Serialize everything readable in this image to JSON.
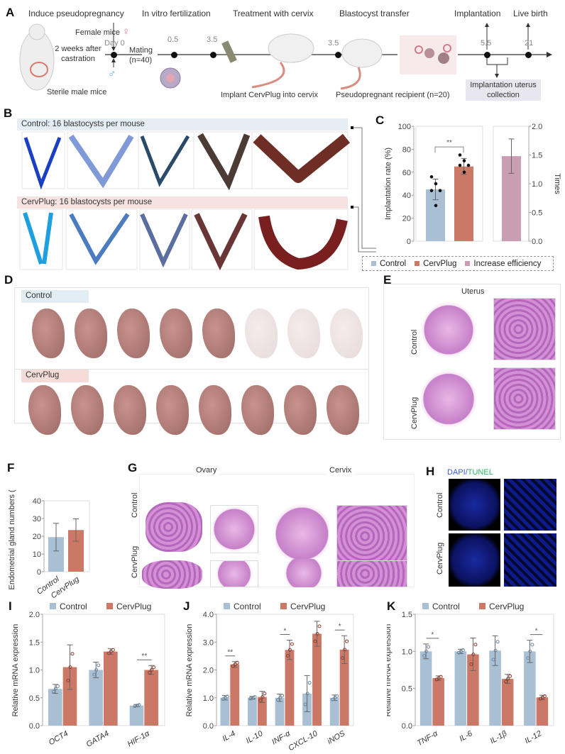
{
  "panels": {
    "A": "A",
    "B": "B",
    "C": "C",
    "D": "D",
    "E": "E",
    "F": "F",
    "G": "G",
    "H": "H",
    "I": "I",
    "J": "J",
    "K": "K"
  },
  "timeline": {
    "stages": [
      "Induce pseudopregnancy",
      "In vitro fertilization",
      "Treatment with cervix",
      "Blastocyst transfer",
      "Implantation",
      "Live birth"
    ],
    "female": "Female mice",
    "female_symbol": "♀",
    "male_symbol": "♂",
    "castration": "2 weeks after castration",
    "sterile_male": "Sterile male mice",
    "mating": "Mating (n=40)",
    "days": [
      "Day 0",
      "0.5",
      "3.5",
      "3.5",
      "5.5",
      "21"
    ],
    "implant": "Implant CervPlug into cervix",
    "recipient": "Pseudopregnant recipient (n=20)",
    "collection": "Implantation uterus collection"
  },
  "panel_b": {
    "control": "Control: 16 blastocysts per mouse",
    "cervplug": "CervPlug: 16 blastocysts per mouse"
  },
  "panel_d": {
    "control": "Control",
    "cervplug": "CervPlug",
    "control_pups": 5,
    "cervplug_pups": 8
  },
  "panel_e": {
    "title": "Uterus",
    "rows": [
      "Control",
      "CervPlug"
    ]
  },
  "panel_g": {
    "ovary": "Ovary",
    "cervix": "Cervix",
    "rows": [
      "Control",
      "CervPlug"
    ]
  },
  "panel_h": {
    "dapi": "DAPI",
    "slash": "/",
    "tunel": "TUNEL",
    "rows": [
      "Control",
      "CervPlug"
    ]
  },
  "colors": {
    "control": "#a9bfd4",
    "cervplug": "#cc7867",
    "increase": "#c99db2",
    "dapi": "#3b5bd9",
    "tunel": "#2fb36a"
  },
  "legend": {
    "control": "Control",
    "cervplug": "CervPlug",
    "increase": "Increase efficiency"
  },
  "chart_data": [
    {
      "id": "C",
      "type": "bar",
      "ylabel": "Implantation rate (%)",
      "ylim": [
        0,
        100
      ],
      "yticks": [
        "0",
        "20",
        "40",
        "60",
        "80",
        "100"
      ],
      "categories": [
        "Control",
        "CervPlug"
      ],
      "values": [
        45,
        65
      ],
      "errors": [
        9,
        7
      ],
      "points": [
        [
          56,
          50,
          44,
          44,
          31
        ],
        [
          75,
          70,
          66,
          66,
          60
        ]
      ],
      "significance": "**",
      "secondary": {
        "ylabel": "Times",
        "ylim": [
          0,
          2.0
        ],
        "yticks": [
          "0.0",
          "0.5",
          "1.0",
          "1.5",
          "2.0"
        ],
        "category": "Increase efficiency",
        "value": 1.48,
        "error": 0.3
      }
    },
    {
      "id": "F",
      "type": "bar",
      "ylabel": "Endometrial gland numbers (n)",
      "ylim": [
        0,
        40
      ],
      "yticks": [
        "0",
        "10",
        "20",
        "30",
        "40"
      ],
      "categories": [
        "Control",
        "CervPlug"
      ],
      "values": [
        19.5,
        23.5
      ],
      "errors": [
        7.8,
        6.3
      ]
    },
    {
      "id": "I",
      "type": "bar",
      "ylabel": "Relative mRNA expression",
      "ylim": [
        0,
        2.0
      ],
      "yticks": [
        "0.0",
        "0.5",
        "1.0",
        "1.5",
        "2.0"
      ],
      "categories": [
        "OCT4",
        "GATA4",
        "HIF-1α"
      ],
      "series": [
        {
          "name": "Control",
          "values": [
            0.66,
            1.0,
            0.36
          ],
          "errors": [
            0.08,
            0.14,
            0.02
          ]
        },
        {
          "name": "CervPlug",
          "values": [
            1.05,
            1.33,
            1.0
          ],
          "errors": [
            0.4,
            0.05,
            0.08
          ]
        }
      ],
      "significance": [
        "",
        "",
        "**"
      ]
    },
    {
      "id": "J",
      "type": "bar",
      "ylabel": "Relative mRNA expression",
      "ylim": [
        0,
        4.0
      ],
      "yticks": [
        "0.0",
        "1.0",
        "2.0",
        "3.0",
        "4.0"
      ],
      "categories": [
        "IL-4",
        "IL-10",
        "INF-α",
        "CXCL-10",
        "iNOS"
      ],
      "series": [
        {
          "name": "Control",
          "values": [
            1.0,
            1.0,
            1.0,
            1.15,
            1.0
          ],
          "errors": [
            0.08,
            0.05,
            0.13,
            0.65,
            0.1
          ]
        },
        {
          "name": "CervPlug",
          "values": [
            2.2,
            1.03,
            2.72,
            3.3,
            2.73
          ],
          "errors": [
            0.1,
            0.2,
            0.35,
            0.45,
            0.5
          ]
        }
      ],
      "significance": [
        "**",
        "",
        "*",
        "",
        "*"
      ]
    },
    {
      "id": "K",
      "type": "bar",
      "ylabel": "Relative mRNA expression",
      "ylim": [
        0,
        1.5
      ],
      "yticks": [
        "0.0",
        "0.5",
        "1.0",
        "1.5"
      ],
      "categories": [
        "TNF-α",
        "IL-6",
        "IL-1β",
        "IL-12"
      ],
      "series": [
        {
          "name": "Control",
          "values": [
            1.0,
            1.0,
            1.01,
            1.0
          ],
          "errors": [
            0.1,
            0.03,
            0.2,
            0.15
          ]
        },
        {
          "name": "CervPlug",
          "values": [
            0.64,
            0.96,
            0.63,
            0.38
          ],
          "errors": [
            0.03,
            0.22,
            0.06,
            0.03
          ]
        }
      ],
      "significance": [
        "*",
        "",
        "",
        "*"
      ]
    }
  ]
}
